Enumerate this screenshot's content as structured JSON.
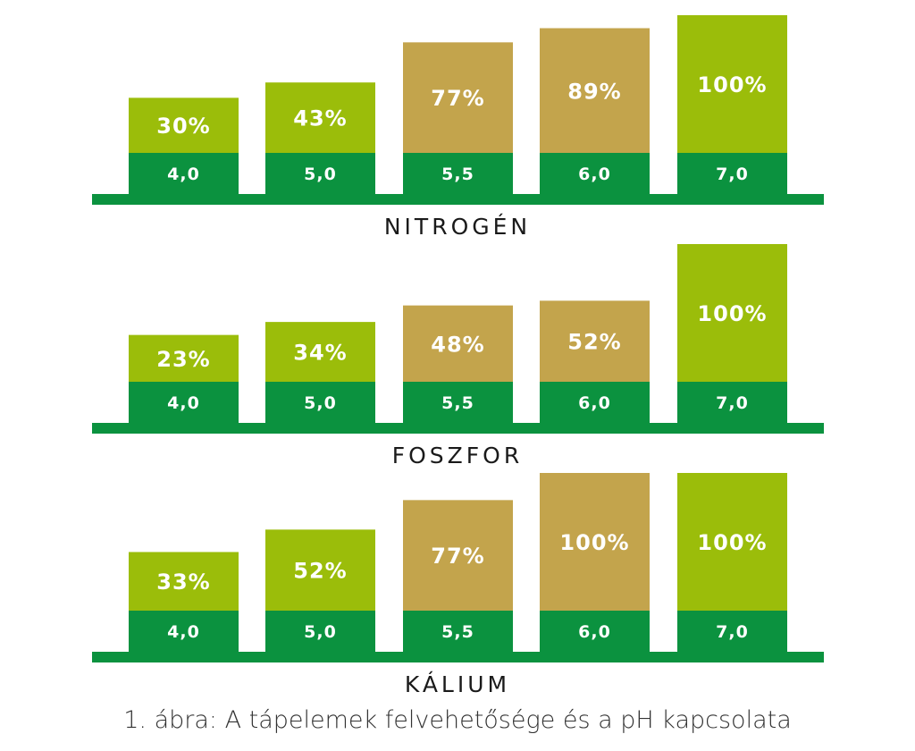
{
  "chart_data": [
    {
      "type": "bar",
      "title": "NITROGÉN",
      "categories": [
        "4,0",
        "5,0",
        "5,5",
        "6,0",
        "7,0"
      ],
      "values": [
        30,
        43,
        77,
        89,
        100
      ],
      "value_labels": [
        "30%",
        "43%",
        "77%",
        "89%",
        "100%"
      ],
      "bar_colors": [
        "#9bbd0a",
        "#9bbd0a",
        "#c3a44c",
        "#c3a44c",
        "#9bbd0a"
      ],
      "ylim": [
        0,
        100
      ]
    },
    {
      "type": "bar",
      "title": "FOSZFOR",
      "categories": [
        "4,0",
        "5,0",
        "5,5",
        "6,0",
        "7,0"
      ],
      "values": [
        23,
        34,
        48,
        52,
        100
      ],
      "value_labels": [
        "23%",
        "34%",
        "48%",
        "52%",
        "100%"
      ],
      "bar_colors": [
        "#9bbd0a",
        "#9bbd0a",
        "#c3a44c",
        "#c3a44c",
        "#9bbd0a"
      ],
      "ylim": [
        0,
        100
      ]
    },
    {
      "type": "bar",
      "title": "KÁLIUM",
      "categories": [
        "4,0",
        "5,0",
        "5,5",
        "6,0",
        "7,0"
      ],
      "values": [
        33,
        52,
        77,
        100,
        100
      ],
      "value_labels": [
        "33%",
        "52%",
        "77%",
        "100%",
        "100%"
      ],
      "bar_colors": [
        "#9bbd0a",
        "#9bbd0a",
        "#c3a44c",
        "#c3a44c",
        "#9bbd0a"
      ],
      "ylim": [
        0,
        100
      ]
    }
  ],
  "colors": {
    "base_green": "#0b923f",
    "light_green": "#9bbd0a",
    "tan": "#c3a44c",
    "label_text": "#ffffff"
  },
  "caption": "1. ábra: A tápelemek felvehetősége és a pH kapcsolata"
}
